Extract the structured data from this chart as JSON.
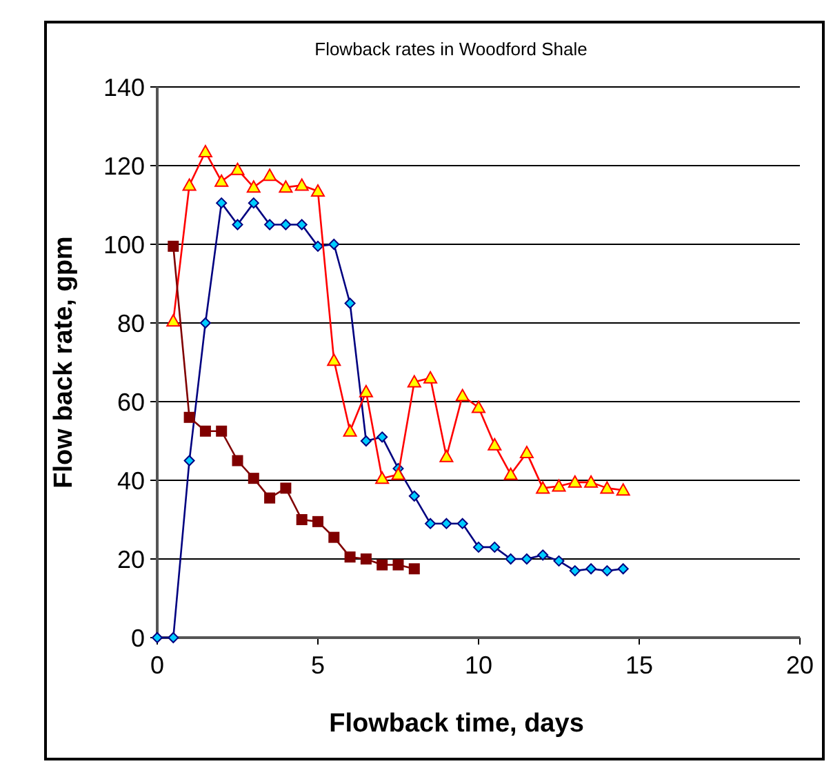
{
  "chart_data": {
    "type": "line",
    "title": "Flowback rates in Woodford Shale",
    "xlabel": "Flowback time, days",
    "ylabel": "Flow back rate, gpm",
    "xlim": [
      0,
      20
    ],
    "xticks": [
      0,
      5,
      10,
      15,
      20
    ],
    "ylim": [
      0,
      140
    ],
    "yticks": [
      0,
      20,
      40,
      60,
      80,
      100,
      120,
      140
    ],
    "grid": "y",
    "series": [
      {
        "color": "#000080",
        "marker": "diamond",
        "x": [
          0,
          0.5,
          1,
          1.5,
          2,
          2.5,
          3,
          3.5,
          4,
          4.5,
          5,
          5.5,
          6,
          6.5,
          7,
          7.5,
          8,
          8.5,
          9,
          9.5,
          10,
          10.5,
          11,
          11.5,
          12,
          12.5,
          13,
          13.5,
          14,
          14.5
        ],
        "values": [
          0,
          0,
          45,
          80,
          110.5,
          105,
          110.5,
          105,
          105,
          105,
          99.5,
          100,
          85,
          50,
          51,
          43,
          36,
          29,
          29,
          29,
          23,
          23,
          20,
          20,
          21,
          19.5,
          17,
          17.5,
          17,
          17.5
        ]
      },
      {
        "color": "#ff0000",
        "marker": "triangle",
        "x": [
          0.5,
          1,
          1.5,
          2,
          2.5,
          3,
          3.5,
          4,
          4.5,
          5,
          5.5,
          6,
          6.5,
          7,
          7.5,
          8,
          8.5,
          9,
          9.5,
          10,
          10.5,
          11,
          11.5,
          12,
          12.5,
          13,
          13.5,
          14,
          14.5
        ],
        "values": [
          80.5,
          115,
          123.5,
          116,
          119,
          114.5,
          117.5,
          114.5,
          115,
          113.5,
          70.5,
          52.5,
          62.5,
          40.5,
          41.5,
          65,
          66,
          46,
          61.5,
          58.5,
          49,
          41.5,
          47,
          38,
          38.5,
          39.5,
          39.5,
          38,
          37.5
        ]
      },
      {
        "color": "#800000",
        "marker": "square",
        "x": [
          0.5,
          1,
          1.5,
          2,
          2.5,
          3,
          3.5,
          4,
          4.5,
          5,
          5.5,
          6,
          6.5,
          7,
          7.5,
          8
        ],
        "values": [
          99.5,
          56,
          52.5,
          52.5,
          45,
          40.5,
          35.5,
          38,
          30,
          29.5,
          25.5,
          20.5,
          20,
          18.5,
          18.5,
          17.5
        ]
      }
    ]
  }
}
